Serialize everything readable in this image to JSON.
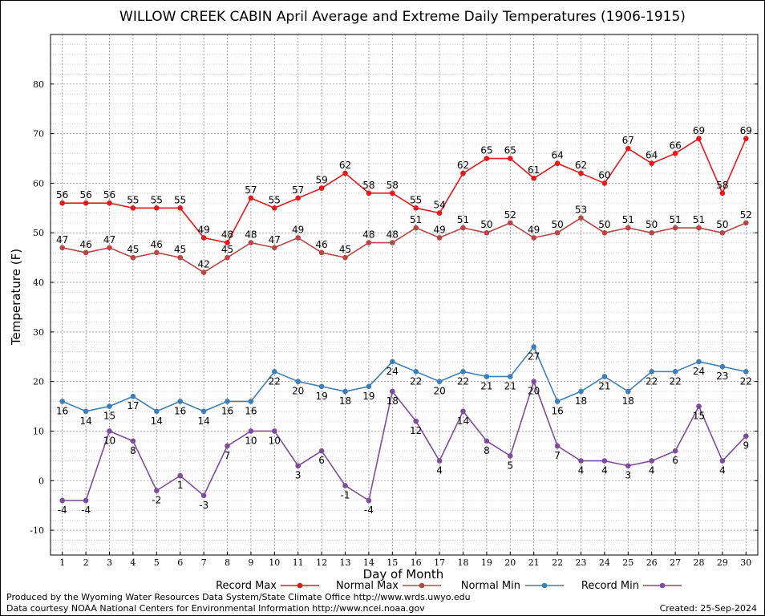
{
  "chart_data": {
    "type": "line",
    "title": "WILLOW CREEK CABIN April Average and Extreme Daily Temperatures (1906-1915)",
    "xlabel": "Day of Month",
    "ylabel": "Temperature (F)",
    "ylim": [
      -15,
      90
    ],
    "xlim": [
      0.5,
      30.5
    ],
    "yticks": [
      -10,
      0,
      10,
      20,
      30,
      40,
      50,
      60,
      70,
      80
    ],
    "x": [
      1,
      2,
      3,
      4,
      5,
      6,
      7,
      8,
      9,
      10,
      11,
      12,
      13,
      14,
      15,
      16,
      17,
      18,
      19,
      20,
      21,
      22,
      23,
      24,
      25,
      26,
      27,
      28,
      29,
      30
    ],
    "grid": true,
    "legend_position": "bottom",
    "series": [
      {
        "name": "Record Max",
        "color": "#e3191c",
        "label_pos": "above",
        "values": [
          56,
          56,
          56,
          55,
          55,
          55,
          49,
          48,
          57,
          55,
          57,
          59,
          62,
          58,
          58,
          55,
          54,
          62,
          65,
          65,
          61,
          64,
          62,
          60,
          67,
          64,
          66,
          69,
          58,
          69
        ]
      },
      {
        "name": "Normal Max",
        "color": "#b84646",
        "label_pos": "above",
        "values": [
          47,
          46,
          47,
          45,
          46,
          45,
          42,
          45,
          48,
          47,
          49,
          46,
          45,
          48,
          48,
          51,
          49,
          51,
          50,
          52,
          49,
          50,
          53,
          50,
          51,
          50,
          51,
          51,
          50,
          52
        ]
      },
      {
        "name": "Normal Min",
        "color": "#3f7fb5",
        "label_pos": "below",
        "values": [
          16,
          14,
          15,
          17,
          14,
          16,
          14,
          16,
          16,
          22,
          20,
          19,
          18,
          19,
          24,
          22,
          20,
          22,
          21,
          21,
          27,
          16,
          18,
          21,
          18,
          22,
          22,
          24,
          23,
          22
        ]
      },
      {
        "name": "Record Min",
        "color": "#7e4c9a",
        "label_pos": "below",
        "values": [
          -4,
          -4,
          10,
          8,
          -2,
          1,
          -3,
          7,
          10,
          10,
          3,
          6,
          -1,
          -4,
          18,
          12,
          4,
          14,
          8,
          5,
          20,
          7,
          4,
          4,
          3,
          4,
          6,
          15,
          4,
          9
        ]
      }
    ]
  },
  "footer": {
    "produced_by": "Produced by the Wyoming Water Resources Data System/State Climate Office http://www.wrds.uwyo.edu",
    "data_courtesy": "Data courtesy NOAA National Centers for Environmental Information http://www.ncei.noaa.gov",
    "created": "Created:  25-Sep-2024"
  }
}
